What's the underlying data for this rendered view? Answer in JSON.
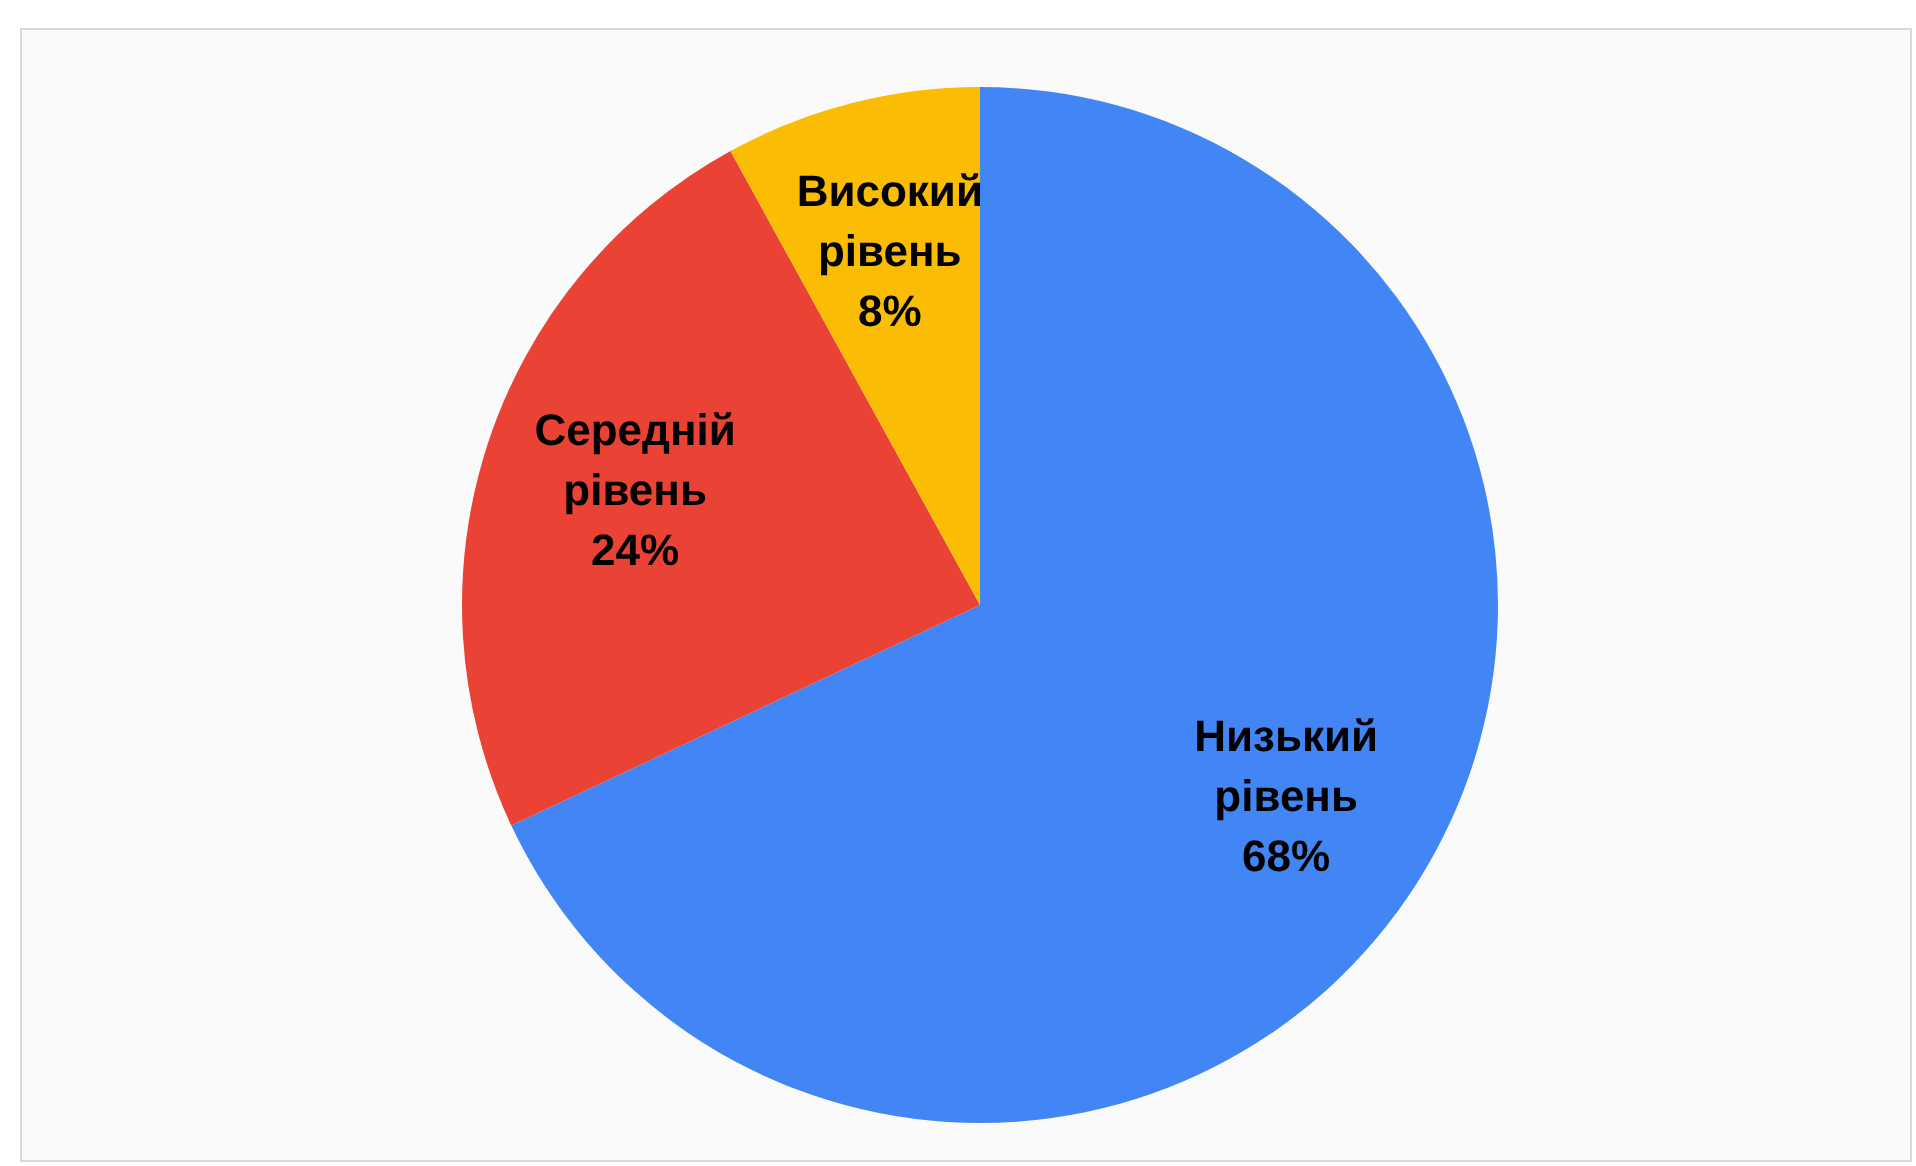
{
  "chart_data": {
    "type": "pie",
    "categories": [
      "Низький рівень",
      "Середній рівень",
      "Високий рівень"
    ],
    "values": [
      68,
      24,
      8
    ],
    "colors": [
      "#4285f4",
      "#ea4335",
      "#fbbc04"
    ],
    "value_labels": [
      "68%",
      "24%",
      "8%"
    ],
    "legend": false
  }
}
